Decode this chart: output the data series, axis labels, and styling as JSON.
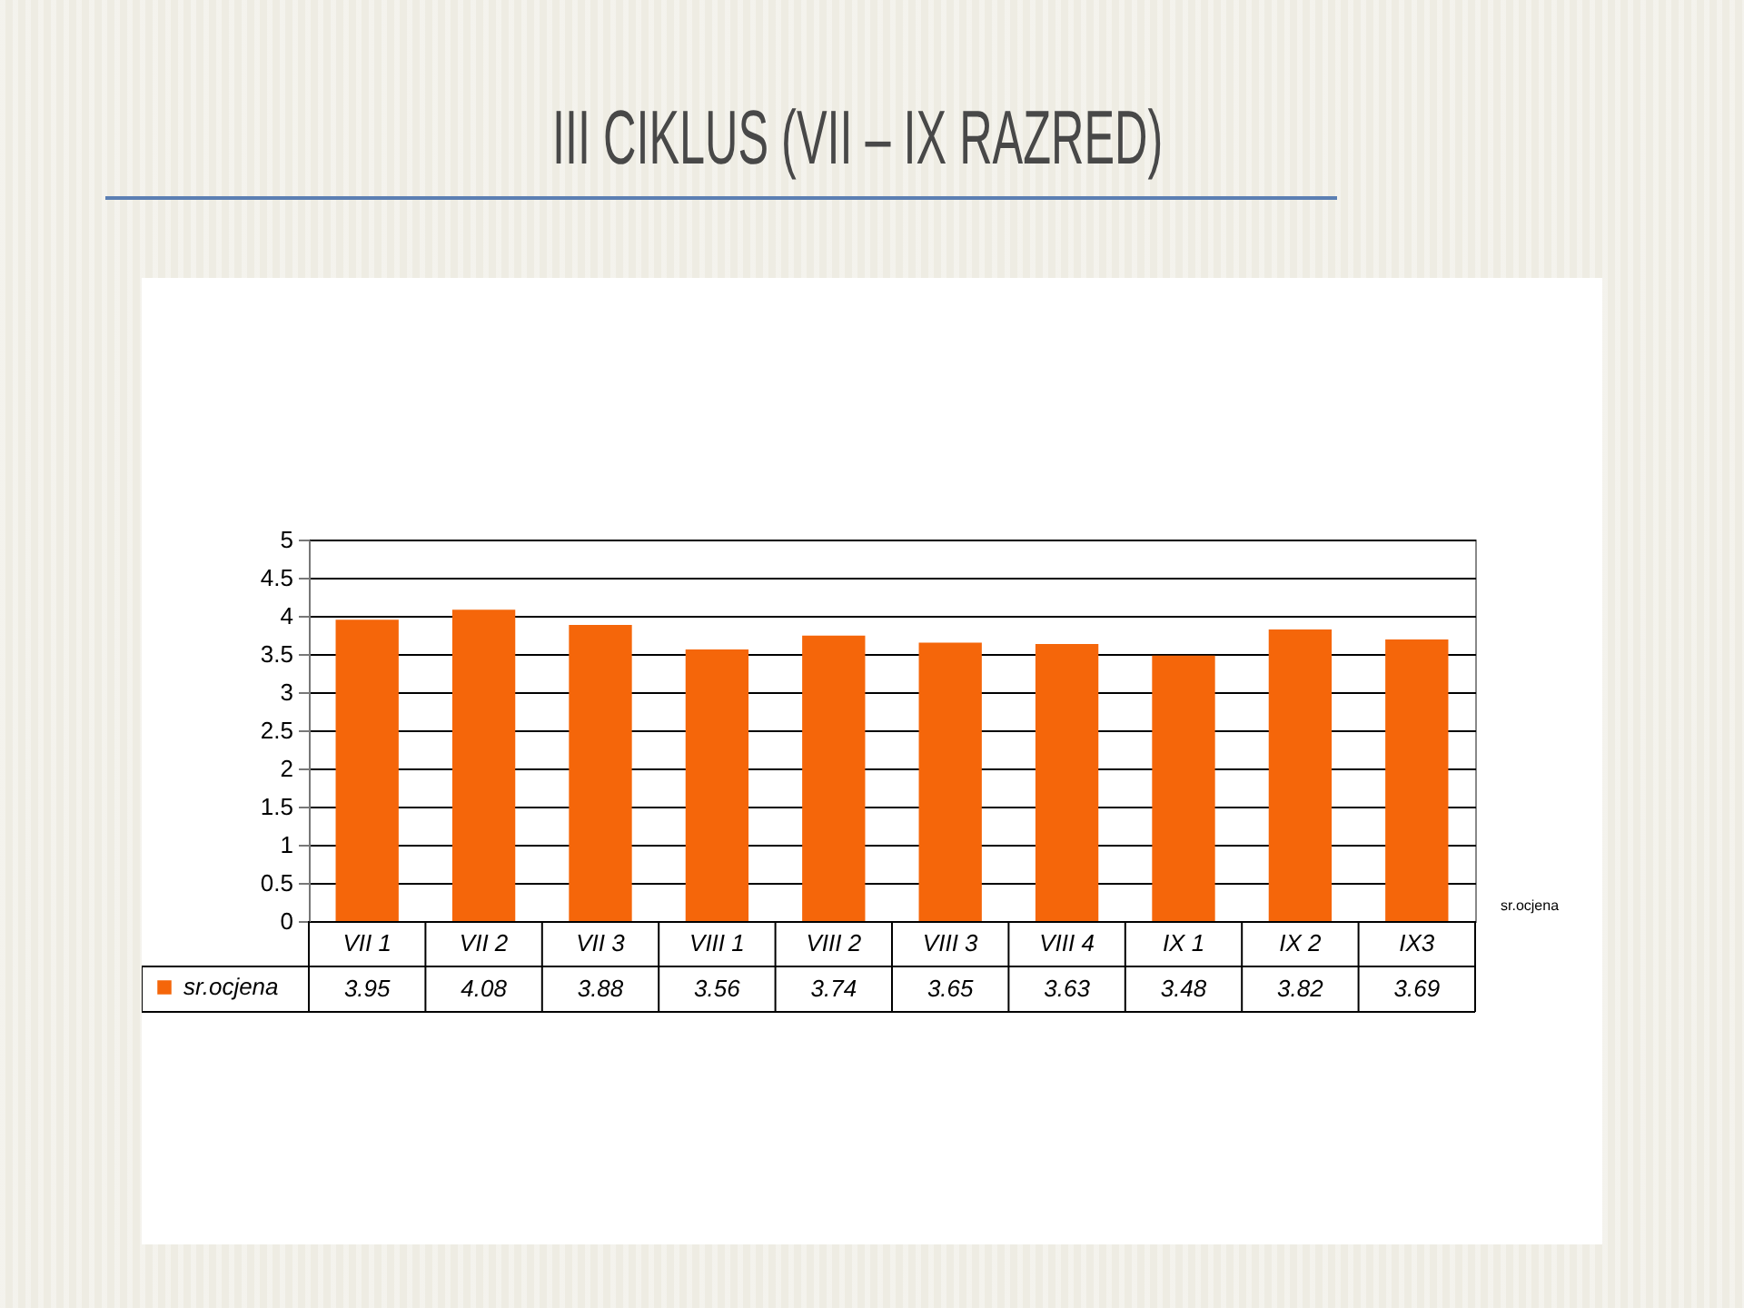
{
  "chart_data": {
    "type": "bar",
    "title": "III CIKLUS (VII – IX RAZRED)",
    "categories": [
      "VII 1",
      "VII 2",
      "VII 3",
      "VIII 1",
      "VIII 2",
      "VIII 3",
      "VIII 4",
      "IX 1",
      "IX 2",
      "IX3"
    ],
    "series": [
      {
        "name": "sr.ocjena",
        "color": "#f5660a",
        "values": [
          3.95,
          4.08,
          3.88,
          3.56,
          3.74,
          3.65,
          3.63,
          3.48,
          3.82,
          3.69
        ]
      }
    ],
    "ylim": [
      0,
      5
    ],
    "yticks": [
      0,
      0.5,
      1,
      1.5,
      2,
      2.5,
      3,
      3.5,
      4,
      4.5,
      5
    ],
    "grid": "y",
    "legend": "bottom left",
    "data_labels": true
  }
}
